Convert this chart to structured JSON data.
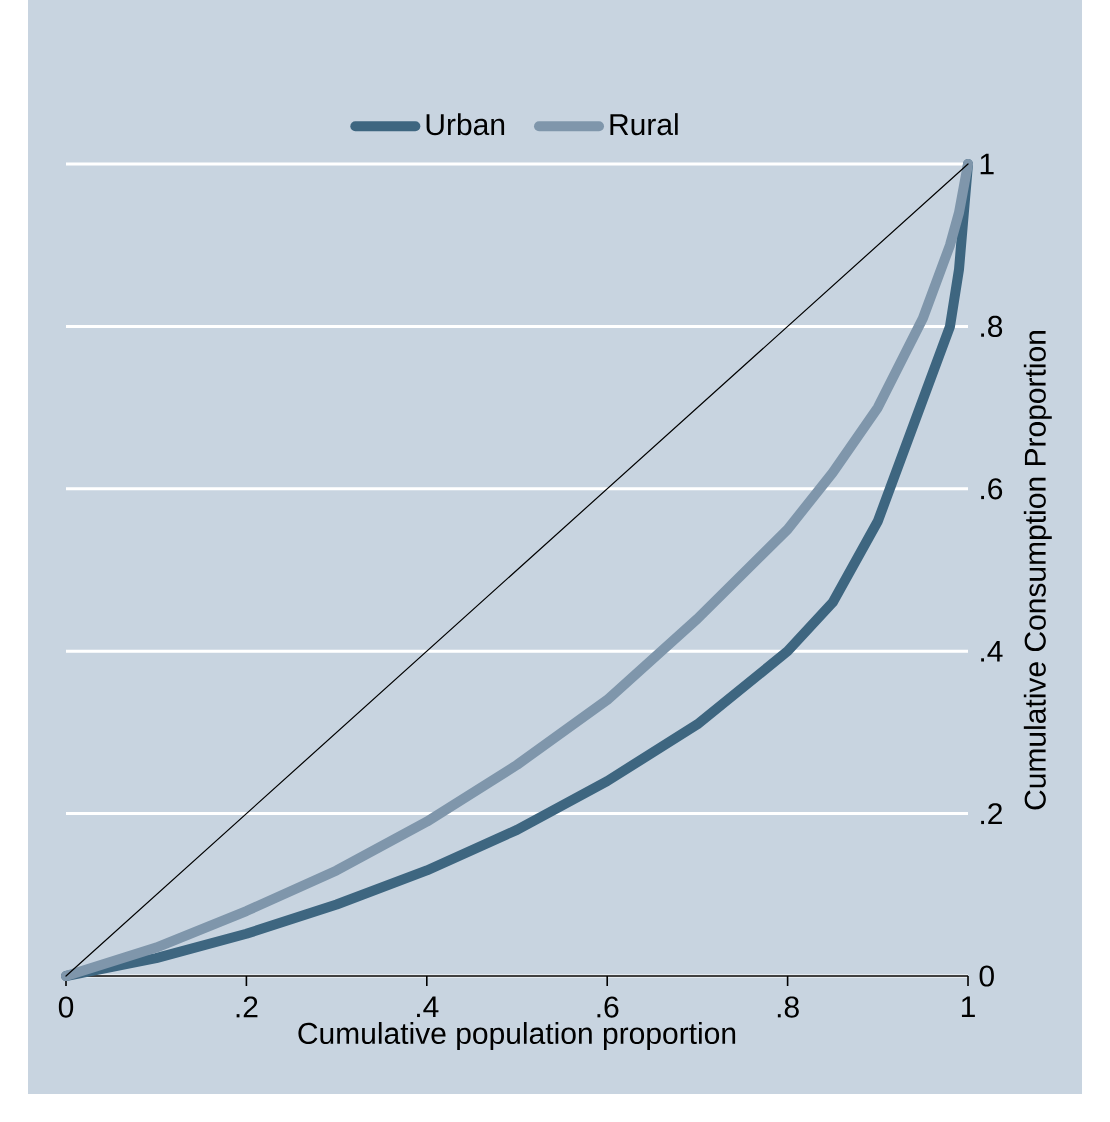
{
  "chart_data": {
    "type": "line",
    "xlabel": "Cumulative population proportion",
    "ylabel": "Cumulative Consumption Proportion",
    "xlim": [
      0,
      1
    ],
    "ylim": [
      0,
      1
    ],
    "xticks": [
      0,
      {
        "value": 0.2,
        "label": ".2"
      },
      {
        "value": 0.4,
        "label": ".4"
      },
      {
        "value": 0.6,
        "label": ".6"
      },
      {
        "value": 0.8,
        "label": ".8"
      },
      1
    ],
    "yticks": [
      0,
      {
        "value": 0.2,
        "label": ".2"
      },
      {
        "value": 0.4,
        "label": ".4"
      },
      {
        "value": 0.6,
        "label": ".6"
      },
      {
        "value": 0.8,
        "label": ".8"
      },
      1
    ],
    "grid": "y",
    "legend": "top",
    "marker": "none",
    "line_style": "solid",
    "series": [
      {
        "name": "Urban",
        "color": "#3e6680",
        "x": [
          0,
          0.1,
          0.2,
          0.3,
          0.4,
          0.5,
          0.6,
          0.7,
          0.8,
          0.85,
          0.9,
          0.95,
          0.98,
          0.99,
          1
        ],
        "values": [
          0,
          0.022,
          0.052,
          0.088,
          0.13,
          0.18,
          0.24,
          0.31,
          0.4,
          0.46,
          0.56,
          0.71,
          0.8,
          0.87,
          1
        ]
      },
      {
        "name": "Rural",
        "color": "#7f96ab",
        "x": [
          0,
          0.1,
          0.2,
          0.3,
          0.4,
          0.5,
          0.6,
          0.7,
          0.8,
          0.85,
          0.9,
          0.95,
          0.98,
          0.99,
          1
        ],
        "values": [
          0,
          0.035,
          0.08,
          0.13,
          0.19,
          0.26,
          0.34,
          0.44,
          0.55,
          0.62,
          0.7,
          0.81,
          0.9,
          0.94,
          1
        ]
      },
      {
        "color": "#000000",
        "x": [
          0,
          1
        ],
        "values": [
          0,
          1
        ]
      }
    ]
  }
}
